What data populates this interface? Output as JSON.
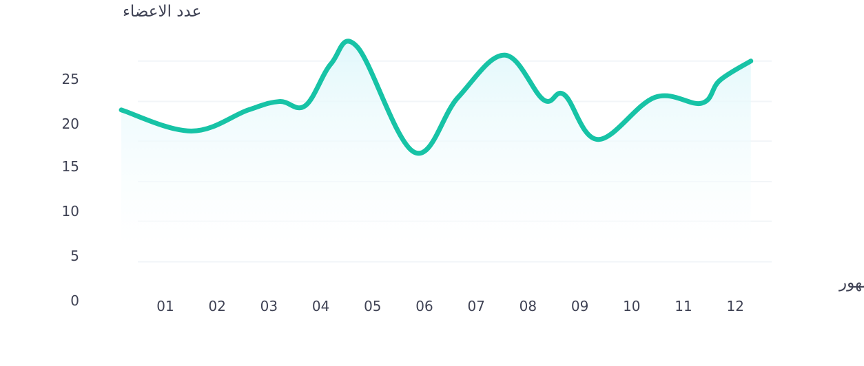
{
  "chart_data": {
    "type": "area",
    "title": "",
    "ylabel": "عدد الاعضاء",
    "xlabel": "الشهور",
    "categories": [
      "01",
      "02",
      "03",
      "04",
      "05",
      "06",
      "07",
      "08",
      "09",
      "10",
      "11",
      "12"
    ],
    "y_ticks": [
      0,
      5,
      10,
      15,
      20,
      25
    ],
    "ylim": [
      0,
      27
    ],
    "grid": true,
    "legend": "none",
    "series": [
      {
        "x": [
          0.15,
          1.5,
          2.6,
          3.2,
          3.7,
          4.2,
          4.7,
          5.8,
          6.65,
          7.55,
          8.3,
          8.7,
          9.35,
          10.45,
          11.35,
          11.7,
          12.3
        ],
        "values": [
          20.0,
          17.5,
          20.0,
          21.0,
          20.5,
          25.5,
          27.5,
          15.0,
          21.5,
          26.5,
          21.2,
          21.8,
          16.5,
          21.5,
          20.8,
          23.5,
          25.8
        ]
      }
    ],
    "colors": {
      "line": "#17c3a6",
      "fill_top": "#dff7fb",
      "fill_bottom": "#ffffff",
      "grid": "#f2f5f8",
      "text": "#3f4254"
    }
  }
}
